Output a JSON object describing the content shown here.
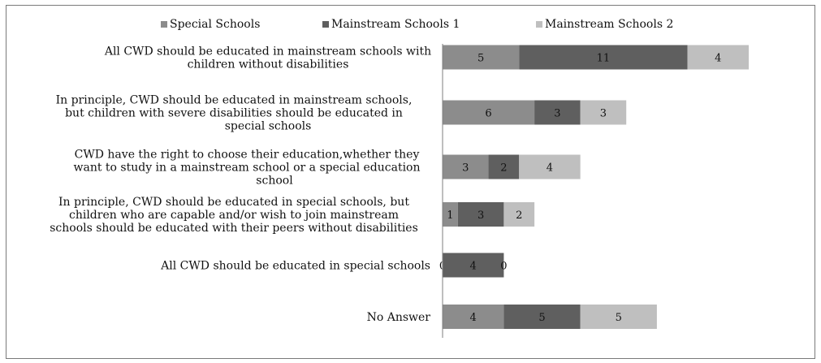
{
  "chart_data": {
    "type": "bar",
    "orientation": "horizontal",
    "stacked": true,
    "grid": false,
    "legend_position": "top",
    "categories": [
      [
        "All CWD should be educated in mainstream schools with",
        "children without disabilities"
      ],
      [
        "In principle, CWD should be educated in mainstream schools,",
        "but children with severe disabilities should be educated in",
        "special schools"
      ],
      [
        "CWD have the right to choose their education,whether they",
        "want to study in a mainstream school or a special education",
        "school"
      ],
      [
        "In principle, CWD should be educated in special schools, but",
        "children who are capable and/or wish to join mainstream",
        "schools should be educated with their peers without disabilities"
      ],
      [
        "All CWD should be educated in special schools"
      ],
      [
        "No Answer"
      ]
    ],
    "series": [
      {
        "name": "Special Schools",
        "color": "#8c8c8c",
        "values": [
          5,
          6,
          3,
          1,
          0,
          4
        ]
      },
      {
        "name": "Mainstream Schools 1",
        "color": "#5f5f5f",
        "values": [
          11,
          3,
          2,
          3,
          4,
          5
        ]
      },
      {
        "name": "Mainstream Schools 2",
        "color": "#bfbfbf",
        "values": [
          4,
          3,
          4,
          2,
          0,
          5
        ]
      }
    ],
    "xlim": [
      0,
      24
    ],
    "data_labels": true
  }
}
